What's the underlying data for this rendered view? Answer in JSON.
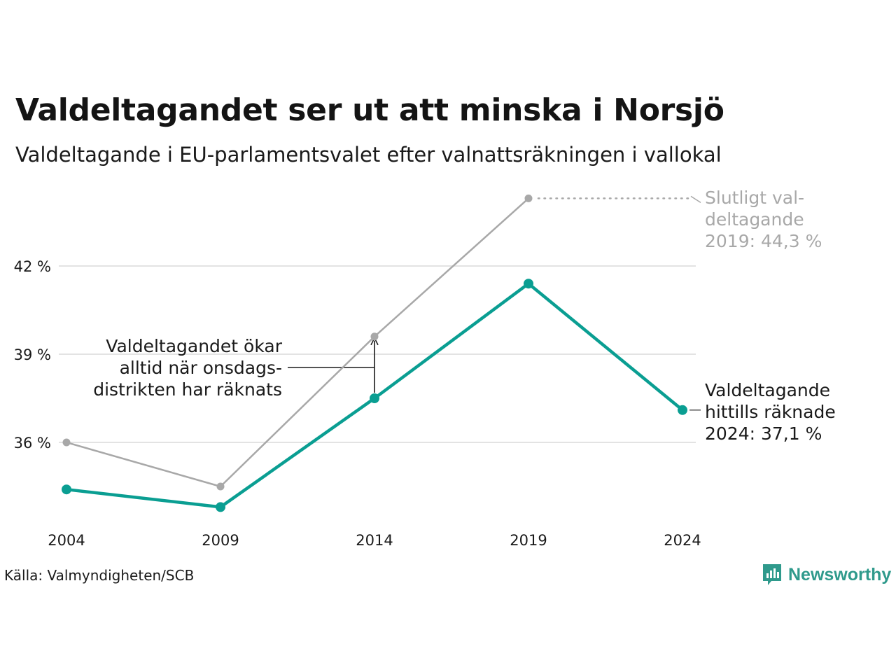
{
  "title": "Valdeltagandet ser ut att minska i Norsjö",
  "subtitle": "Valdeltagande i EU-parlamentsvalet efter valnattsräkningen i vallokal",
  "source": "Källa: Valmyndigheten/SCB",
  "brand": "Newsworthy",
  "colors": {
    "final_series": "#a8a8a8",
    "current_series": "#0a9e92",
    "grid": "#e3e3e3",
    "annotation_gray": "#a8a8a8",
    "brand": "#2f9a8c"
  },
  "chart_data": {
    "type": "line",
    "categories": [
      "2004",
      "2009",
      "2014",
      "2019",
      "2024"
    ],
    "series": [
      {
        "key": "final",
        "values": [
          36.0,
          34.5,
          39.6,
          44.3,
          null
        ]
      },
      {
        "key": "valnatt",
        "values": [
          34.4,
          33.8,
          37.5,
          41.4,
          37.1
        ]
      }
    ],
    "yticks": [
      36,
      39,
      42
    ],
    "ytick_labels": [
      "36 %",
      "39 %",
      "42 %"
    ],
    "ylim": [
      33,
      45
    ],
    "grid": true,
    "annotations": {
      "final_2019": [
        "Slutligt val-",
        "deltagande",
        "2019: 44,3 %"
      ],
      "current_2024": [
        "Valdeltagande",
        "hittills räknade",
        "2024: 37,1 %"
      ],
      "increase": [
        "Valdeltagandet ökar",
        "alltid när onsdags-",
        "distrikten har räknats"
      ]
    }
  }
}
